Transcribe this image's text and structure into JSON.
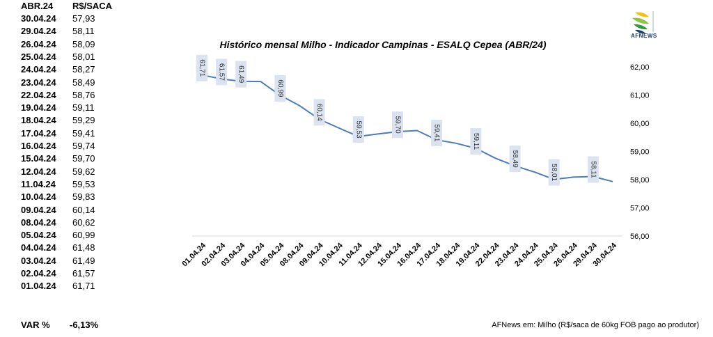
{
  "table": {
    "header": {
      "date": "ABR.24",
      "value": "R$/SACA"
    },
    "rows": [
      {
        "date": "30.04.24",
        "value": "57,93"
      },
      {
        "date": "29.04.24",
        "value": "58,11"
      },
      {
        "date": "26.04.24",
        "value": "58,09"
      },
      {
        "date": "25.04.24",
        "value": "58,01"
      },
      {
        "date": "24.04.24",
        "value": "58,27"
      },
      {
        "date": "23.04.24",
        "value": "58,49"
      },
      {
        "date": "22.04.24",
        "value": "58,76"
      },
      {
        "date": "19.04.24",
        "value": "59,11"
      },
      {
        "date": "18.04.24",
        "value": "59,29"
      },
      {
        "date": "17.04.24",
        "value": "59,41"
      },
      {
        "date": "16.04.24",
        "value": "59,74"
      },
      {
        "date": "15.04.24",
        "value": "59,70"
      },
      {
        "date": "12.04.24",
        "value": "59,62"
      },
      {
        "date": "11.04.24",
        "value": "59,53"
      },
      {
        "date": "10.04.24",
        "value": "59,83"
      },
      {
        "date": "09.04.24",
        "value": "60,14"
      },
      {
        "date": "08.04.24",
        "value": "60,62"
      },
      {
        "date": "05.04.24",
        "value": "60,99"
      },
      {
        "date": "04.04.24",
        "value": "61,48"
      },
      {
        "date": "03.04.24",
        "value": "61,49"
      },
      {
        "date": "02.04.24",
        "value": "61,57"
      },
      {
        "date": "01.04.24",
        "value": "61,71"
      }
    ],
    "var_label": "VAR %",
    "var_value": "-6,13%"
  },
  "footer_note": "AFNews em: Milho (R$/saca de 60kg FOB pago ao produtor)",
  "logo": {
    "text": "AFNEWS",
    "icon": "afnews-leaf-logo"
  },
  "colors": {
    "line": "#4a7cc2",
    "label_bg": "#dbe3f1",
    "axis": "#d9d9d9"
  },
  "chart_data": {
    "type": "line",
    "title": "Histórico mensal Milho - Indicador Campinas - ESALQ Cepea (ABR/24)",
    "categories": [
      "01.04.24",
      "02.04.24",
      "03.04.24",
      "04.04.24",
      "05.04.24",
      "08.04.24",
      "09.04.24",
      "10.04.24",
      "11.04.24",
      "12.04.24",
      "15.04.24",
      "16.04.24",
      "17.04.24",
      "18.04.24",
      "19.04.24",
      "22.04.24",
      "23.04.24",
      "24.04.24",
      "25.04.24",
      "26.04.24",
      "29.04.24",
      "30.04.24"
    ],
    "values": [
      61.71,
      61.57,
      61.49,
      61.48,
      60.99,
      60.62,
      60.14,
      59.83,
      59.53,
      59.62,
      59.7,
      59.74,
      59.41,
      59.29,
      59.11,
      58.76,
      58.49,
      58.27,
      58.01,
      58.09,
      58.11,
      57.93
    ],
    "data_labels": [
      {
        "index": 0,
        "text": "61,71"
      },
      {
        "index": 1,
        "text": "61,57"
      },
      {
        "index": 2,
        "text": "61,49"
      },
      {
        "index": 4,
        "text": "60,99"
      },
      {
        "index": 6,
        "text": "60,14"
      },
      {
        "index": 8,
        "text": "59,53"
      },
      {
        "index": 10,
        "text": "59,70"
      },
      {
        "index": 12,
        "text": "59,41"
      },
      {
        "index": 14,
        "text": "59,11"
      },
      {
        "index": 16,
        "text": "58,49"
      },
      {
        "index": 18,
        "text": "58,01"
      },
      {
        "index": 20,
        "text": "58,11"
      }
    ],
    "y_ticks": [
      "56,00",
      "57,00",
      "58,00",
      "59,00",
      "60,00",
      "61,00",
      "62,00"
    ],
    "ylim": [
      56,
      62
    ],
    "y_axis_side": "right",
    "grid": false,
    "legend": "none"
  }
}
